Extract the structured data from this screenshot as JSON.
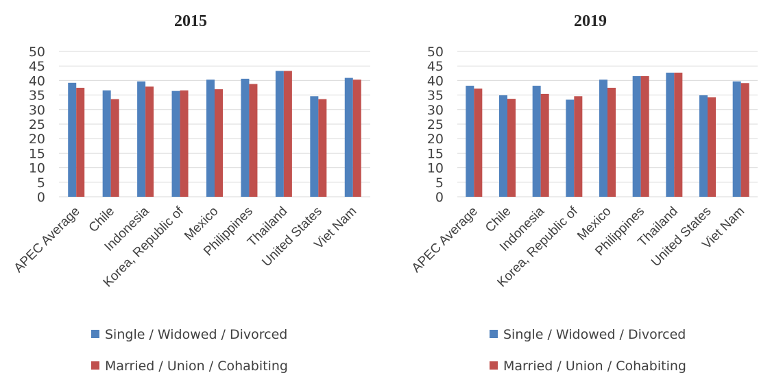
{
  "chart_data": [
    {
      "type": "bar",
      "title": "2015",
      "categories": [
        "APEC Average",
        "Chile",
        "Indonesia",
        "Korea, Republic of",
        "Mexico",
        "Philippines",
        "Thailand",
        "United States",
        "Viet Nam"
      ],
      "ylim": [
        0,
        50
      ],
      "yticks": [
        0,
        5,
        10,
        15,
        20,
        25,
        30,
        35,
        40,
        45,
        50
      ],
      "grid": true,
      "legend": "bottom",
      "series": [
        {
          "name": "Single / Widowed / Divorced",
          "color": "#4f81bd",
          "values": [
            39.2,
            36.6,
            39.7,
            36.4,
            40.3,
            40.6,
            43.3,
            34.6,
            40.9
          ]
        },
        {
          "name": "Married / Union / Cohabiting",
          "color": "#c0504d",
          "values": [
            37.5,
            33.6,
            37.9,
            36.6,
            37.0,
            38.8,
            43.3,
            33.6,
            40.3
          ]
        }
      ]
    },
    {
      "type": "bar",
      "title": "2019",
      "categories": [
        "APEC Average",
        "Chile",
        "Indonesia",
        "Korea, Republic of",
        "Mexico",
        "Philippines",
        "Thailand",
        "United States",
        "Viet Nam"
      ],
      "ylim": [
        0,
        50
      ],
      "yticks": [
        0,
        5,
        10,
        15,
        20,
        25,
        30,
        35,
        40,
        45,
        50
      ],
      "grid": true,
      "legend": "bottom",
      "series": [
        {
          "name": "Single / Widowed / Divorced",
          "color": "#4f81bd",
          "values": [
            38.2,
            34.9,
            38.2,
            33.4,
            40.3,
            41.5,
            42.7,
            34.9,
            39.7
          ]
        },
        {
          "name": "Married / Union / Cohabiting",
          "color": "#c0504d",
          "values": [
            37.2,
            33.7,
            35.4,
            34.6,
            37.5,
            41.5,
            42.7,
            34.2,
            39.1
          ]
        }
      ]
    }
  ]
}
